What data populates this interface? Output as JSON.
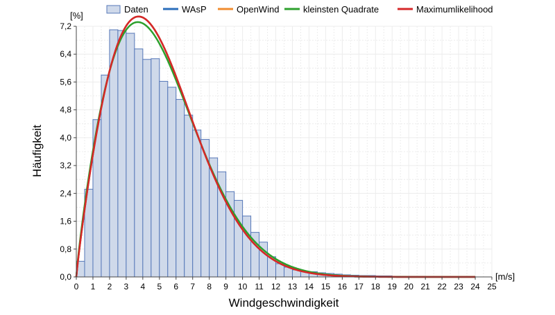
{
  "chart_data": {
    "type": "bar",
    "title": "",
    "xlabel": "Windgeschwindigkeit",
    "ylabel": "Häufigkeit",
    "x_unit": "[m/s]",
    "y_unit": "[%]",
    "xlim": [
      0,
      25
    ],
    "ylim": [
      0,
      7.2
    ],
    "x_ticks": [
      0,
      1,
      2,
      3,
      4,
      5,
      6,
      7,
      8,
      9,
      10,
      11,
      12,
      13,
      14,
      15,
      16,
      17,
      18,
      19,
      20,
      21,
      22,
      23,
      24,
      25
    ],
    "y_ticks": [
      "0,0",
      "0,8",
      "1,6",
      "2,4",
      "3,2",
      "4,0",
      "4,8",
      "5,6",
      "6,4",
      "7,2"
    ],
    "grid": true,
    "legend_position": "top",
    "bar_width": 0.5,
    "bars": {
      "name": "Daten",
      "fill": "#cfd9ea",
      "stroke": "#5577b8",
      "x_start": [
        0,
        0.5,
        1,
        1.5,
        2,
        2.5,
        3,
        3.5,
        4,
        4.5,
        5,
        5.5,
        6,
        6.5,
        7,
        7.5,
        8,
        8.5,
        9,
        9.5,
        10,
        10.5,
        11,
        11.5,
        12,
        12.5,
        13,
        13.5,
        14,
        14.5,
        15,
        15.5,
        16,
        16.5,
        17,
        17.5,
        18,
        18.5,
        19,
        19.5,
        20,
        20.5,
        21,
        21.5,
        22,
        22.5,
        23,
        23.5
      ],
      "values": [
        0.45,
        2.52,
        4.52,
        5.8,
        7.1,
        7.08,
        7.0,
        6.55,
        6.25,
        6.27,
        5.62,
        5.45,
        5.1,
        4.65,
        4.22,
        3.95,
        3.42,
        3.02,
        2.45,
        2.2,
        1.75,
        1.28,
        1.0,
        0.58,
        0.38,
        0.28,
        0.2,
        0.15,
        0.15,
        0.12,
        0.1,
        0.08,
        0.06,
        0.05,
        0.04,
        0.04,
        0.03,
        0.03,
        0.02,
        0.02,
        0.02,
        0.02,
        0.01,
        0.01,
        0.01,
        0.01,
        0.01,
        0.01
      ]
    },
    "series": [
      {
        "name": "WAsP",
        "color": "#2a6ebb",
        "weibull_k": 1.9,
        "weibull_A": 5.55,
        "scale_percent": 100,
        "bin_width": 0.5
      },
      {
        "name": "OpenWind",
        "color": "#f08c2e",
        "weibull_k": 1.9,
        "weibull_A": 5.55,
        "scale_percent": 100,
        "bin_width": 0.5
      },
      {
        "name": "kleinsten Quadrate",
        "color": "#2ca02c",
        "weibull_k": 1.86,
        "weibull_A": 5.6,
        "scale_percent": 100,
        "bin_width": 0.5
      },
      {
        "name": "Maximumlikelihood",
        "color": "#d62728",
        "weibull_k": 1.9,
        "weibull_A": 5.55,
        "scale_percent": 100,
        "bin_width": 0.5
      }
    ],
    "legend": [
      "Daten",
      "WAsP",
      "OpenWind",
      "kleinsten Quadrate",
      "Maximumlikelihood"
    ]
  }
}
